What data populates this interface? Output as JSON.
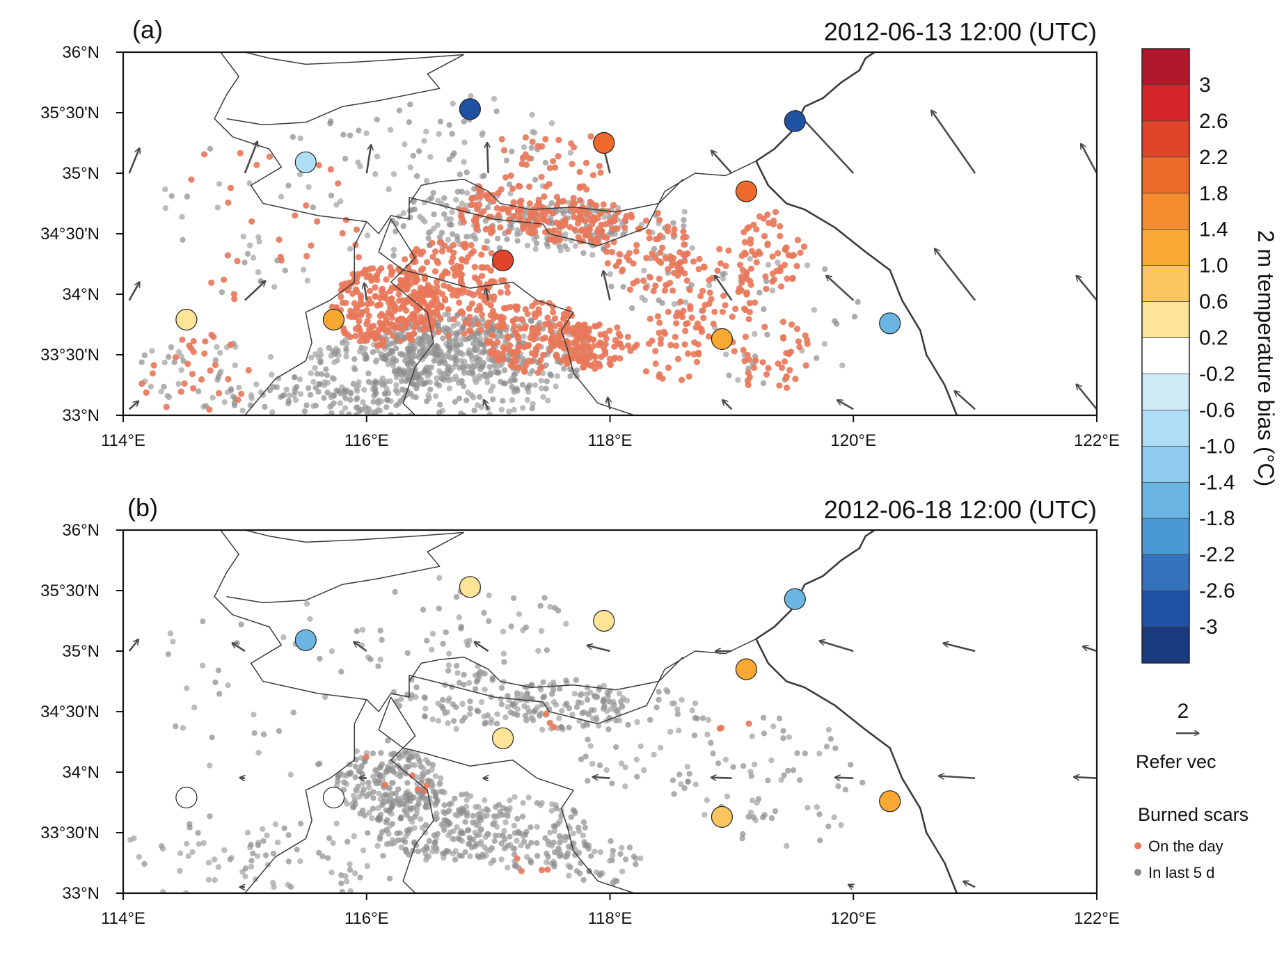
{
  "panels": [
    {
      "label": "(a)",
      "title": "2012-06-13 12:00 (UTC)",
      "stations": [
        {
          "lon": 116.85,
          "lat": 35.53,
          "bias": -2.8
        },
        {
          "lon": 115.5,
          "lat": 35.09,
          "bias": -0.6
        },
        {
          "lon": 117.95,
          "lat": 35.25,
          "bias": 2.1
        },
        {
          "lon": 119.52,
          "lat": 35.43,
          "bias": -2.6
        },
        {
          "lon": 119.12,
          "lat": 34.85,
          "bias": 2.2
        },
        {
          "lon": 117.12,
          "lat": 34.28,
          "bias": 2.4
        },
        {
          "lon": 114.52,
          "lat": 33.79,
          "bias": 0.4
        },
        {
          "lon": 115.73,
          "lat": 33.79,
          "bias": 1.2
        },
        {
          "lon": 118.92,
          "lat": 33.63,
          "bias": 1.2
        },
        {
          "lon": 120.3,
          "lat": 33.76,
          "bias": -1.5
        }
      ],
      "winds": [
        {
          "lon": 114.05,
          "lat": 35.0,
          "u": 0.45,
          "v": 1.1
        },
        {
          "lon": 115.0,
          "lat": 35.0,
          "u": 0.55,
          "v": 1.4
        },
        {
          "lon": 116.0,
          "lat": 35.0,
          "u": 0.2,
          "v": 1.25
        },
        {
          "lon": 117.0,
          "lat": 35.0,
          "u": -0.05,
          "v": 1.35
        },
        {
          "lon": 118.0,
          "lat": 35.0,
          "u": -0.35,
          "v": 1.4
        },
        {
          "lon": 119.0,
          "lat": 35.0,
          "u": -0.9,
          "v": 1.0
        },
        {
          "lon": 120.0,
          "lat": 35.0,
          "u": -2.6,
          "v": 2.8
        },
        {
          "lon": 121.0,
          "lat": 35.0,
          "u": -1.95,
          "v": 2.8
        },
        {
          "lon": 122.0,
          "lat": 35.0,
          "u": -0.7,
          "v": 1.3
        },
        {
          "lon": 114.05,
          "lat": 33.95,
          "u": 0.45,
          "v": 0.8
        },
        {
          "lon": 115.0,
          "lat": 33.95,
          "u": 0.9,
          "v": 0.85
        },
        {
          "lon": 116.0,
          "lat": 33.95,
          "u": -0.1,
          "v": 0.75
        },
        {
          "lon": 117.0,
          "lat": 33.95,
          "u": -0.1,
          "v": 0.5
        },
        {
          "lon": 118.0,
          "lat": 33.95,
          "u": -0.3,
          "v": 1.3
        },
        {
          "lon": 119.0,
          "lat": 33.95,
          "u": -0.75,
          "v": 1.1
        },
        {
          "lon": 120.0,
          "lat": 33.95,
          "u": -1.2,
          "v": 1.1
        },
        {
          "lon": 121.0,
          "lat": 33.95,
          "u": -1.8,
          "v": 2.3
        },
        {
          "lon": 122.0,
          "lat": 33.95,
          "u": -0.9,
          "v": 1.1
        },
        {
          "lon": 114.05,
          "lat": 33.05,
          "u": 0.4,
          "v": 0.35
        },
        {
          "lon": 117.0,
          "lat": 33.05,
          "u": -0.2,
          "v": 0.4
        },
        {
          "lon": 118.0,
          "lat": 33.05,
          "u": -0.1,
          "v": 0.5
        },
        {
          "lon": 119.0,
          "lat": 33.05,
          "u": -0.4,
          "v": 0.4
        },
        {
          "lon": 120.0,
          "lat": 33.05,
          "u": -0.7,
          "v": 0.4
        },
        {
          "lon": 121.0,
          "lat": 33.05,
          "u": -0.9,
          "v": 0.8
        },
        {
          "lon": 122.0,
          "lat": 33.05,
          "u": -0.9,
          "v": 1.1
        }
      ],
      "burn_today": [
        {
          "lon": 116.15,
          "lat": 33.9,
          "w": 0.45,
          "h": 0.33,
          "n": 260
        },
        {
          "lon": 116.7,
          "lat": 34.05,
          "w": 0.5,
          "h": 0.4,
          "n": 200
        },
        {
          "lon": 117.4,
          "lat": 33.65,
          "w": 0.45,
          "h": 0.3,
          "n": 160
        },
        {
          "lon": 117.85,
          "lat": 33.58,
          "w": 0.35,
          "h": 0.2,
          "n": 110
        },
        {
          "lon": 117.7,
          "lat": 34.6,
          "w": 0.45,
          "h": 0.2,
          "n": 110
        },
        {
          "lon": 117.1,
          "lat": 34.7,
          "w": 0.35,
          "h": 0.22,
          "n": 80
        },
        {
          "lon": 118.3,
          "lat": 34.35,
          "w": 0.35,
          "h": 0.35,
          "n": 70
        },
        {
          "lon": 118.85,
          "lat": 34.0,
          "w": 0.4,
          "h": 0.4,
          "n": 70
        },
        {
          "lon": 119.3,
          "lat": 34.35,
          "w": 0.3,
          "h": 0.35,
          "n": 60
        },
        {
          "lon": 119.3,
          "lat": 33.5,
          "w": 0.4,
          "h": 0.3,
          "n": 40
        },
        {
          "lon": 118.5,
          "lat": 33.55,
          "w": 0.3,
          "h": 0.3,
          "n": 40
        },
        {
          "lon": 117.5,
          "lat": 35.1,
          "w": 0.5,
          "h": 0.3,
          "n": 40
        },
        {
          "lon": 115.2,
          "lat": 34.6,
          "w": 0.9,
          "h": 0.7,
          "n": 30
        },
        {
          "lon": 114.6,
          "lat": 33.35,
          "w": 0.5,
          "h": 0.35,
          "n": 30
        }
      ],
      "burn_last5d": [
        {
          "lon": 116.65,
          "lat": 33.55,
          "w": 0.55,
          "h": 0.3,
          "n": 320
        },
        {
          "lon": 116.1,
          "lat": 33.4,
          "w": 0.6,
          "h": 0.3,
          "n": 170
        },
        {
          "lon": 117.3,
          "lat": 33.5,
          "w": 0.55,
          "h": 0.3,
          "n": 160
        },
        {
          "lon": 117.65,
          "lat": 34.55,
          "w": 0.5,
          "h": 0.22,
          "n": 120
        },
        {
          "lon": 116.8,
          "lat": 34.6,
          "w": 0.6,
          "h": 0.25,
          "n": 90
        },
        {
          "lon": 115.6,
          "lat": 33.15,
          "w": 0.8,
          "h": 0.18,
          "n": 80
        },
        {
          "lon": 116.6,
          "lat": 33.15,
          "w": 0.9,
          "h": 0.18,
          "n": 90
        },
        {
          "lon": 118.3,
          "lat": 34.3,
          "w": 0.5,
          "h": 0.5,
          "n": 50
        },
        {
          "lon": 119.4,
          "lat": 33.8,
          "w": 0.7,
          "h": 0.6,
          "n": 40
        },
        {
          "lon": 116.8,
          "lat": 35.2,
          "w": 0.9,
          "h": 0.45,
          "n": 60
        },
        {
          "lon": 115.3,
          "lat": 34.7,
          "w": 1.1,
          "h": 0.8,
          "n": 50
        },
        {
          "lon": 114.7,
          "lat": 33.35,
          "w": 0.6,
          "h": 0.3,
          "n": 40
        }
      ]
    },
    {
      "label": "(b)",
      "title": "2012-06-18 12:00 (UTC)",
      "stations": [
        {
          "lon": 116.85,
          "lat": 35.53,
          "bias": 0.4
        },
        {
          "lon": 115.5,
          "lat": 35.09,
          "bias": -1.5
        },
        {
          "lon": 117.95,
          "lat": 35.25,
          "bias": 0.4
        },
        {
          "lon": 119.52,
          "lat": 35.43,
          "bias": -1.6
        },
        {
          "lon": 119.12,
          "lat": 34.85,
          "bias": 1.3
        },
        {
          "lon": 117.12,
          "lat": 34.28,
          "bias": 0.5
        },
        {
          "lon": 114.52,
          "lat": 33.79,
          "bias": 0.0
        },
        {
          "lon": 115.73,
          "lat": 33.79,
          "bias": 0.0
        },
        {
          "lon": 118.92,
          "lat": 33.63,
          "bias": 0.9
        },
        {
          "lon": 120.3,
          "lat": 33.76,
          "bias": 1.3
        }
      ],
      "winds": [
        {
          "lon": 114.05,
          "lat": 35.0,
          "u": 0.4,
          "v": 0.5
        },
        {
          "lon": 115.0,
          "lat": 35.0,
          "u": -0.55,
          "v": 0.35
        },
        {
          "lon": 116.0,
          "lat": 35.0,
          "u": -0.55,
          "v": 0.4
        },
        {
          "lon": 117.0,
          "lat": 35.0,
          "u": -0.6,
          "v": 0.4
        },
        {
          "lon": 118.0,
          "lat": 35.0,
          "u": -1.0,
          "v": 0.25
        },
        {
          "lon": 119.0,
          "lat": 35.0,
          "u": -0.7,
          "v": 0.0
        },
        {
          "lon": 120.0,
          "lat": 35.0,
          "u": -1.5,
          "v": 0.45
        },
        {
          "lon": 121.0,
          "lat": 35.0,
          "u": -1.4,
          "v": 0.35
        },
        {
          "lon": 122.0,
          "lat": 35.0,
          "u": -0.6,
          "v": 0.2
        },
        {
          "lon": 115.0,
          "lat": 33.95,
          "u": -0.2,
          "v": 0.02
        },
        {
          "lon": 116.0,
          "lat": 33.95,
          "u": -0.3,
          "v": 0.02
        },
        {
          "lon": 117.0,
          "lat": 33.95,
          "u": -0.2,
          "v": 0.0
        },
        {
          "lon": 118.0,
          "lat": 33.95,
          "u": -0.75,
          "v": 0.05
        },
        {
          "lon": 119.0,
          "lat": 33.95,
          "u": -0.9,
          "v": 0.03
        },
        {
          "lon": 120.0,
          "lat": 33.95,
          "u": -0.8,
          "v": 0.03
        },
        {
          "lon": 121.0,
          "lat": 33.95,
          "u": -1.6,
          "v": 0.1
        },
        {
          "lon": 122.0,
          "lat": 33.95,
          "u": -1.0,
          "v": 0.05
        },
        {
          "lon": 115.0,
          "lat": 33.05,
          "u": -0.2,
          "v": 0.0
        },
        {
          "lon": 120.0,
          "lat": 33.05,
          "u": -0.2,
          "v": 0.1
        },
        {
          "lon": 121.0,
          "lat": 33.05,
          "u": -0.5,
          "v": 0.25
        }
      ],
      "burn_today": [
        {
          "lon": 116.35,
          "lat": 33.85,
          "w": 0.2,
          "h": 0.15,
          "n": 4
        },
        {
          "lon": 117.3,
          "lat": 33.3,
          "w": 0.3,
          "h": 0.2,
          "n": 4
        },
        {
          "lon": 117.7,
          "lat": 34.4,
          "w": 0.3,
          "h": 0.2,
          "n": 3
        },
        {
          "lon": 119.0,
          "lat": 34.3,
          "w": 0.3,
          "h": 0.2,
          "n": 3
        },
        {
          "lon": 116.1,
          "lat": 34.0,
          "w": 0.2,
          "h": 0.15,
          "n": 2
        }
      ],
      "burn_last5d": [
        {
          "lon": 116.2,
          "lat": 33.9,
          "w": 0.45,
          "h": 0.3,
          "n": 220
        },
        {
          "lon": 116.6,
          "lat": 33.55,
          "w": 0.55,
          "h": 0.3,
          "n": 180
        },
        {
          "lon": 117.3,
          "lat": 33.5,
          "w": 0.55,
          "h": 0.3,
          "n": 140
        },
        {
          "lon": 117.65,
          "lat": 34.55,
          "w": 0.5,
          "h": 0.22,
          "n": 120
        },
        {
          "lon": 116.8,
          "lat": 34.6,
          "w": 0.6,
          "h": 0.25,
          "n": 80
        },
        {
          "lon": 115.6,
          "lat": 33.3,
          "w": 0.9,
          "h": 0.3,
          "n": 60
        },
        {
          "lon": 118.3,
          "lat": 34.2,
          "w": 0.6,
          "h": 0.5,
          "n": 60
        },
        {
          "lon": 119.4,
          "lat": 33.9,
          "w": 0.7,
          "h": 0.6,
          "n": 60
        },
        {
          "lon": 117.9,
          "lat": 33.3,
          "w": 0.4,
          "h": 0.25,
          "n": 50
        },
        {
          "lon": 116.8,
          "lat": 35.2,
          "w": 0.9,
          "h": 0.45,
          "n": 50
        },
        {
          "lon": 115.3,
          "lat": 34.7,
          "w": 1.1,
          "h": 0.8,
          "n": 40
        },
        {
          "lon": 114.6,
          "lat": 33.3,
          "w": 0.6,
          "h": 0.35,
          "n": 30
        }
      ]
    }
  ],
  "axes": {
    "lon_range": [
      114,
      122
    ],
    "lat_range": [
      33,
      36
    ],
    "x_ticks": [
      {
        "value": 114,
        "label": "114°E"
      },
      {
        "value": 116,
        "label": "116°E"
      },
      {
        "value": 118,
        "label": "118°E"
      },
      {
        "value": 120,
        "label": "120°E"
      },
      {
        "value": 122,
        "label": "122°E"
      }
    ],
    "y_ticks": [
      {
        "value": 36,
        "label": "36°N"
      },
      {
        "value": 35.5,
        "label": "35°30'N"
      },
      {
        "value": 35,
        "label": "35°N"
      },
      {
        "value": 34.5,
        "label": "34°30'N"
      },
      {
        "value": 34,
        "label": "34°N"
      },
      {
        "value": 33.5,
        "label": "33°30'N"
      },
      {
        "value": 33,
        "label": "33°N"
      }
    ]
  },
  "colorbar": {
    "title": "2 m temperature bias (°C)",
    "labels": [
      "3",
      "2.6",
      "2.2",
      "1.8",
      "1.4",
      "1.0",
      "0.6",
      "0.2",
      "-0.2",
      "-0.6",
      "-1.0",
      "-1.4",
      "-1.8",
      "-2.2",
      "-2.6",
      "-3"
    ],
    "bounds": [
      3,
      2.6,
      2.2,
      1.8,
      1.4,
      1.0,
      0.6,
      0.2,
      -0.2,
      -0.6,
      -1.0,
      -1.4,
      -1.8,
      -2.2,
      -2.6,
      -3
    ],
    "colors": [
      "#b2182b",
      "#d6262c",
      "#e0452c",
      "#ee6a2b",
      "#f58a2f",
      "#f9a832",
      "#fdc55f",
      "#fee497",
      "#ffffff",
      "#cdeaf6",
      "#b0ddf6",
      "#8ecbee",
      "#6bb5e2",
      "#4a98d4",
      "#3472bd",
      "#2052a3",
      "#1a3a7e"
    ]
  },
  "vector_legend": {
    "value": "2",
    "label": "Refer vec"
  },
  "burn_legend": {
    "title": "Burned scars",
    "today": "On the day",
    "last5d": "In last 5 d",
    "today_color": "#e8785a",
    "last5d_color": "#8a8a8a"
  },
  "map_style": {
    "border_color": "#3a3a3a",
    "arrow_color": "#4a4a4a"
  }
}
